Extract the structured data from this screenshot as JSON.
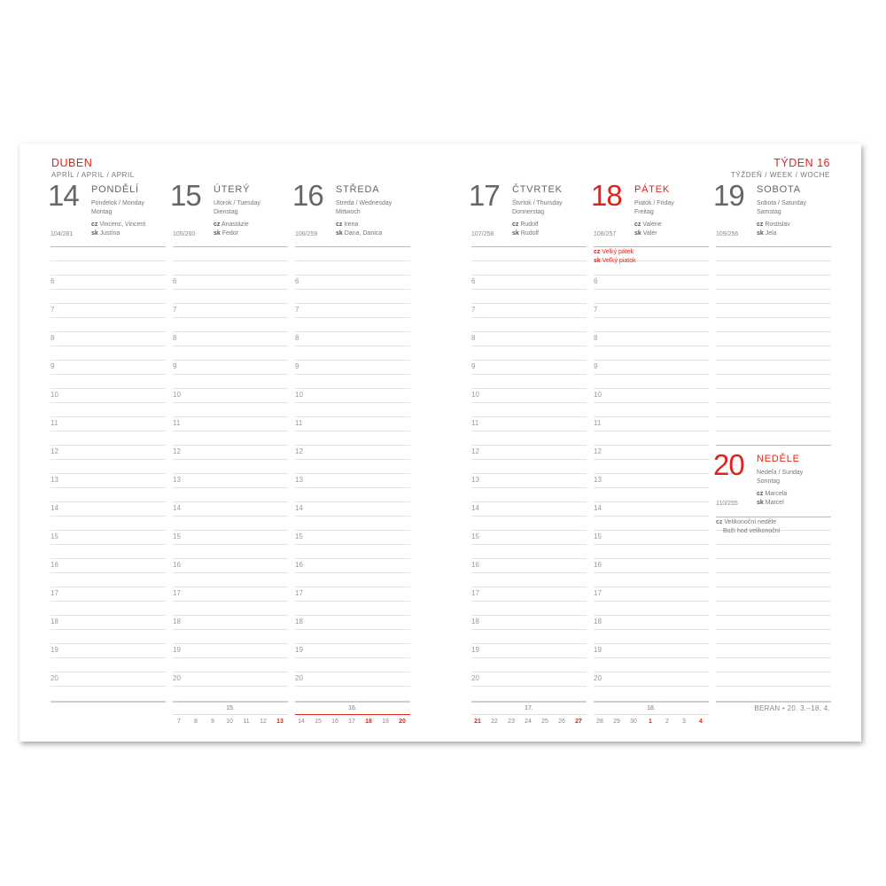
{
  "header": {
    "month": "DUBEN",
    "month_sub": "APRÍL / APRIL / APRIL",
    "week": "TÝDEN 16",
    "week_sub": "TÝŽDEŇ / WEEK / WOCHE"
  },
  "hours": [
    "6",
    "7",
    "8",
    "9",
    "10",
    "11",
    "12",
    "13",
    "14",
    "15",
    "16",
    "17",
    "18",
    "19",
    "20"
  ],
  "days": [
    {
      "num": "14",
      "name": "PONDĚLÍ",
      "sub1": "Pondelok / Monday",
      "sub2": "Montag",
      "cz": "Vincenc, Vincent",
      "sk": "Justína",
      "doy": "104/261",
      "red": false
    },
    {
      "num": "15",
      "name": "ÚTERÝ",
      "sub1": "Utorok / Tuesday",
      "sub2": "Dienstag",
      "cz": "Anastázie",
      "sk": "Fedor",
      "doy": "105/260",
      "red": false
    },
    {
      "num": "16",
      "name": "STŘEDA",
      "sub1": "Streda / Wednesday",
      "sub2": "Mittwoch",
      "cz": "Irena",
      "sk": "Dana, Danica",
      "doy": "106/259",
      "red": false
    },
    {
      "num": "17",
      "name": "ČTVRTEK",
      "sub1": "Štvrtok / Thursday",
      "sub2": "Donnerstag",
      "cz": "Rudolf",
      "sk": "Rudolf",
      "doy": "107/258",
      "red": false
    },
    {
      "num": "18",
      "name": "PÁTEK",
      "sub1": "Piatok / Friday",
      "sub2": "Freitag",
      "cz": "Valérie",
      "sk": "Valér",
      "doy": "108/257",
      "red": true,
      "holiday": {
        "cz": "Velký pátek",
        "sk": "Veľký piatok"
      }
    },
    {
      "num": "19",
      "name": "SOBOTA",
      "sub1": "Sobota / Saturday",
      "sub2": "Samstag",
      "cz": "Rostislav",
      "sk": "Jela",
      "doy": "109/256",
      "red": false
    },
    {
      "num": "20",
      "name": "NEDĚLE",
      "sub1": "Nedeľa / Sunday",
      "sub2": "Sonntag",
      "cz": "Marcela",
      "sk": "Marcel",
      "doy": "110/255",
      "red": true,
      "holiday": {
        "cz": "Velikonoční neděle",
        "line2": "Boží hod velikonoční"
      }
    }
  ],
  "labels": {
    "cz": "cz",
    "sk": "sk"
  },
  "mini_calendars": [
    {
      "week": "15.",
      "days": [
        "7",
        "8",
        "9",
        "10",
        "11",
        "12",
        "13"
      ],
      "red": [
        6
      ],
      "current": false
    },
    {
      "week": "16.",
      "days": [
        "14",
        "15",
        "16",
        "17",
        "18",
        "19",
        "20"
      ],
      "red": [
        4,
        6
      ],
      "current": true
    },
    {
      "week": "17.",
      "days": [
        "21",
        "22",
        "23",
        "24",
        "25",
        "26",
        "27"
      ],
      "red": [
        0,
        6
      ],
      "current": false
    },
    {
      "week": "18.",
      "days": [
        "28",
        "29",
        "30",
        "1",
        "2",
        "3",
        "4"
      ],
      "red": [
        3,
        6
      ],
      "current": false
    }
  ],
  "footer": "BERAN • 20. 3.–18. 4.",
  "colors": {
    "accent": "#e2231a",
    "text": "#777777",
    "rule": "#e2e2e2"
  }
}
